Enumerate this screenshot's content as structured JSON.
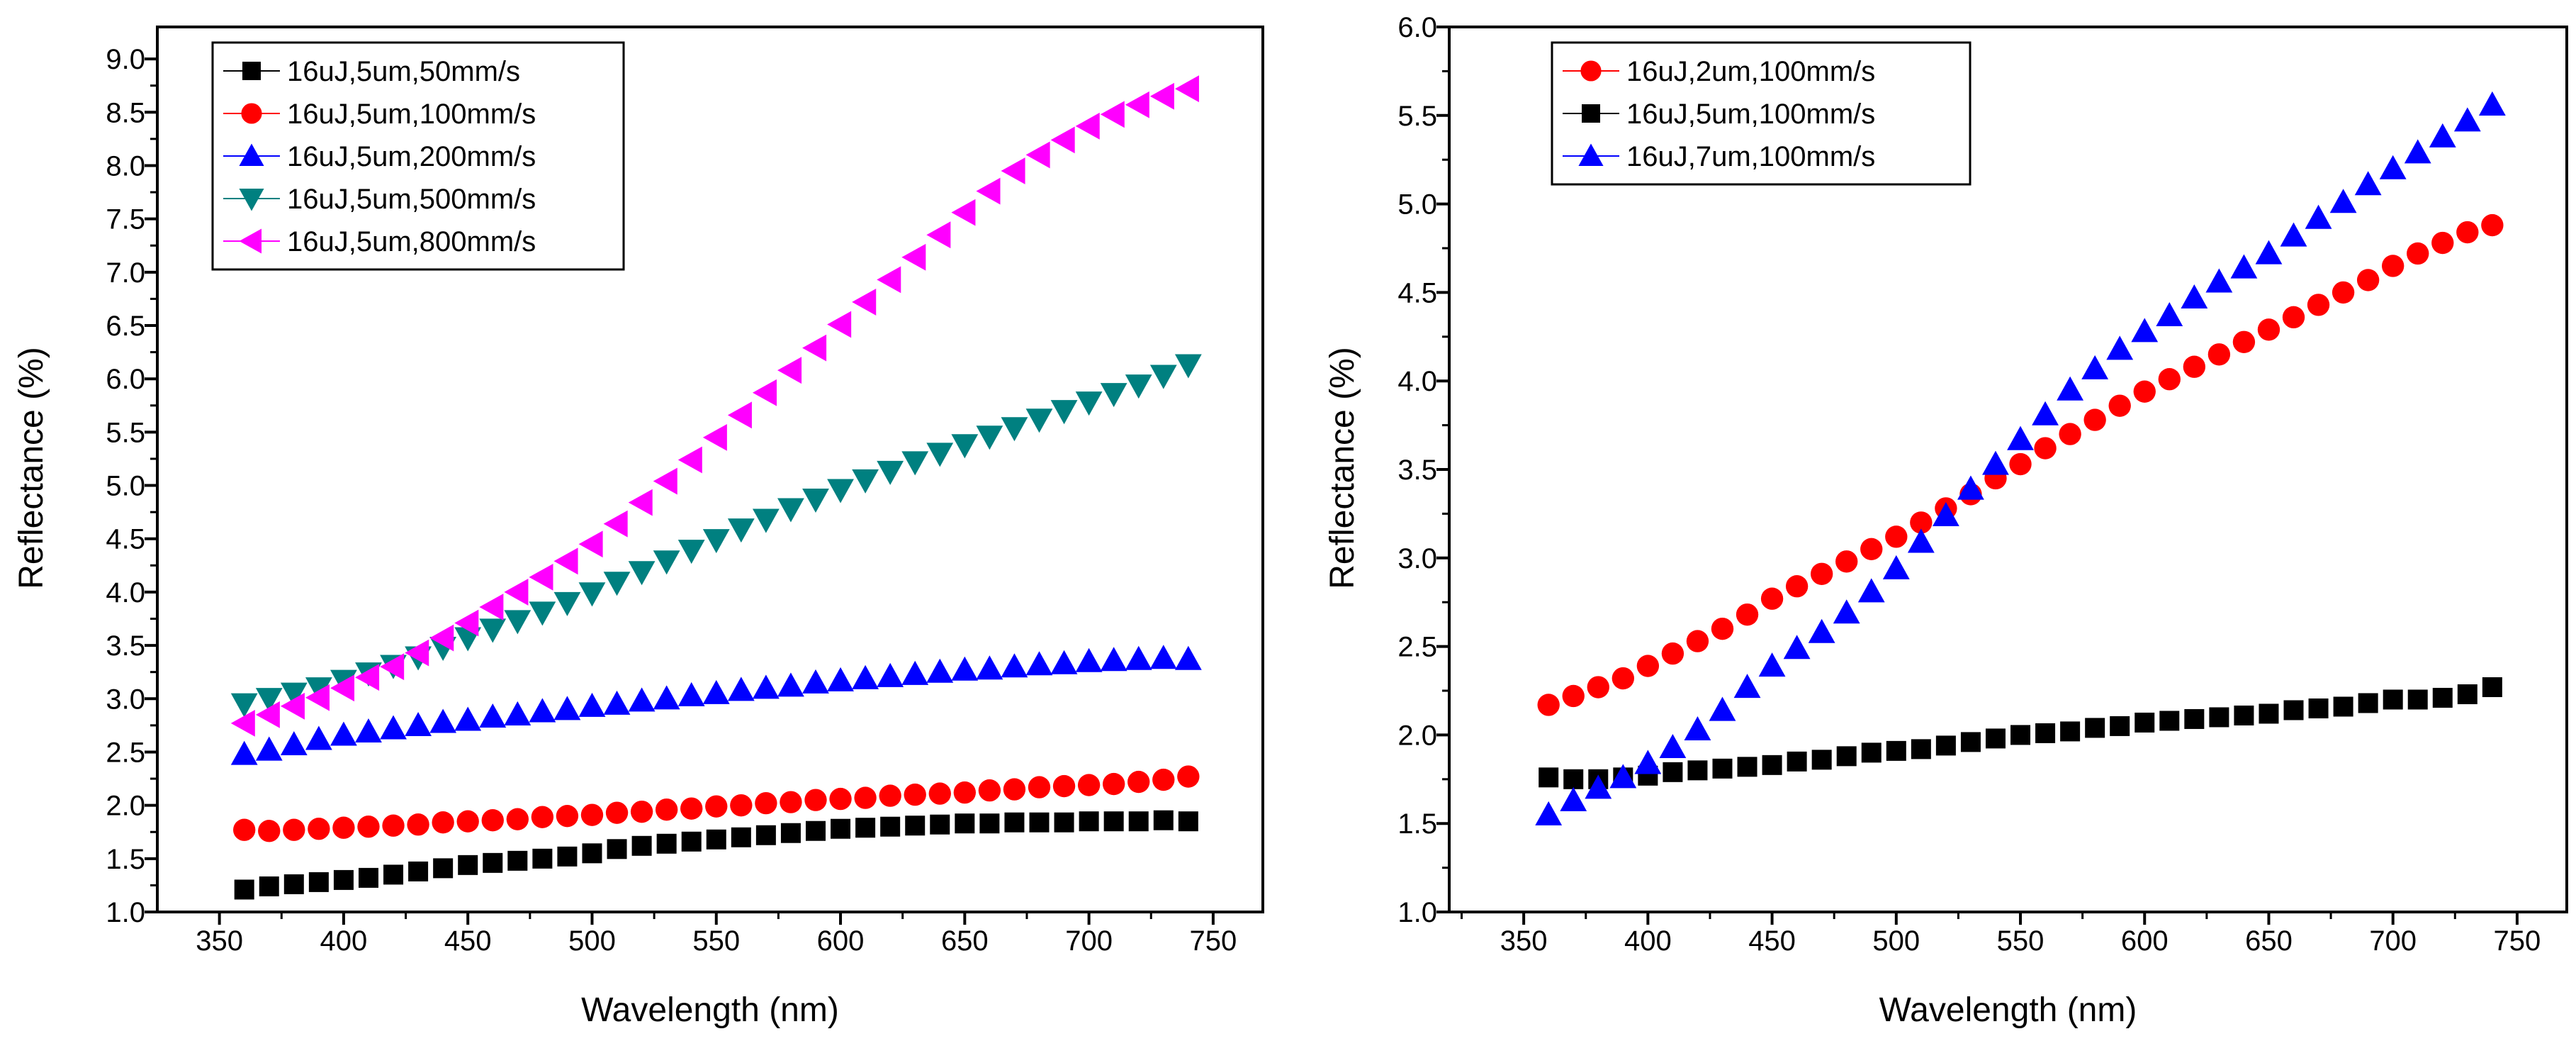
{
  "chart_data": [
    {
      "type": "scatter",
      "xlabel": "Wavelength (nm)",
      "ylabel": "Reflectance (%)",
      "xlim": [
        325,
        770
      ],
      "ylim": [
        1.0,
        9.3
      ],
      "xticks": [
        "350",
        "400",
        "450",
        "500",
        "550",
        "600",
        "650",
        "700",
        "750"
      ],
      "yticks": [
        "1.0",
        "1.5",
        "2.0",
        "2.5",
        "3.0",
        "3.5",
        "4.0",
        "4.5",
        "5.0",
        "5.5",
        "6.0",
        "6.5",
        "7.0",
        "7.5",
        "8.0",
        "8.5",
        "9.0"
      ],
      "legend_position": "top-left",
      "grid": false,
      "x": [
        360,
        370,
        380,
        390,
        400,
        410,
        420,
        430,
        440,
        450,
        460,
        470,
        480,
        490,
        500,
        510,
        520,
        530,
        540,
        550,
        560,
        570,
        580,
        590,
        600,
        610,
        620,
        630,
        640,
        650,
        660,
        670,
        680,
        690,
        700,
        710,
        720,
        730,
        740
      ],
      "series": [
        {
          "name": "16uJ,5um,50mm/s",
          "marker": "square",
          "color": "#000000",
          "values": [
            1.21,
            1.24,
            1.26,
            1.28,
            1.3,
            1.32,
            1.35,
            1.38,
            1.41,
            1.44,
            1.46,
            1.48,
            1.5,
            1.52,
            1.55,
            1.59,
            1.62,
            1.64,
            1.66,
            1.68,
            1.7,
            1.72,
            1.74,
            1.76,
            1.78,
            1.79,
            1.8,
            1.81,
            1.82,
            1.83,
            1.83,
            1.84,
            1.84,
            1.84,
            1.85,
            1.85,
            1.85,
            1.86,
            1.85
          ]
        },
        {
          "name": "16uJ,5um,100mm/s",
          "marker": "circle",
          "color": "#ff0000",
          "values": [
            1.77,
            1.76,
            1.77,
            1.78,
            1.79,
            1.8,
            1.81,
            1.82,
            1.84,
            1.85,
            1.86,
            1.87,
            1.89,
            1.9,
            1.91,
            1.93,
            1.94,
            1.96,
            1.97,
            1.99,
            2.0,
            2.02,
            2.03,
            2.05,
            2.06,
            2.07,
            2.09,
            2.1,
            2.11,
            2.12,
            2.14,
            2.15,
            2.17,
            2.18,
            2.19,
            2.2,
            2.22,
            2.24,
            2.27
          ]
        },
        {
          "name": "16uJ,5um,200mm/s",
          "marker": "triangle-up",
          "color": "#0000ff",
          "values": [
            2.48,
            2.52,
            2.57,
            2.62,
            2.66,
            2.69,
            2.72,
            2.75,
            2.78,
            2.8,
            2.83,
            2.85,
            2.88,
            2.9,
            2.93,
            2.95,
            2.98,
            3.0,
            3.03,
            3.05,
            3.08,
            3.1,
            3.12,
            3.15,
            3.17,
            3.19,
            3.21,
            3.23,
            3.25,
            3.27,
            3.28,
            3.3,
            3.32,
            3.33,
            3.35,
            3.36,
            3.37,
            3.38,
            3.37
          ]
        },
        {
          "name": "16uJ,5um,500mm/s",
          "marker": "triangle-down",
          "color": "#008080",
          "values": [
            2.95,
            3.0,
            3.05,
            3.1,
            3.17,
            3.24,
            3.31,
            3.39,
            3.48,
            3.57,
            3.65,
            3.73,
            3.81,
            3.9,
            3.99,
            4.09,
            4.19,
            4.29,
            4.39,
            4.49,
            4.59,
            4.68,
            4.78,
            4.87,
            4.96,
            5.05,
            5.13,
            5.22,
            5.3,
            5.38,
            5.46,
            5.54,
            5.62,
            5.7,
            5.78,
            5.86,
            5.94,
            6.03,
            6.13
          ]
        },
        {
          "name": "16uJ,5um,800mm/s",
          "marker": "triangle-left",
          "color": "#ff00ff",
          "values": [
            2.77,
            2.85,
            2.93,
            3.01,
            3.1,
            3.2,
            3.3,
            3.43,
            3.57,
            3.71,
            3.86,
            4.0,
            4.14,
            4.29,
            4.45,
            4.64,
            4.84,
            5.04,
            5.24,
            5.45,
            5.66,
            5.87,
            6.08,
            6.29,
            6.51,
            6.72,
            6.93,
            7.14,
            7.35,
            7.56,
            7.76,
            7.95,
            8.1,
            8.24,
            8.37,
            8.48,
            8.57,
            8.65,
            8.72
          ]
        }
      ]
    },
    {
      "type": "scatter",
      "xlabel": "Wavelength (nm)",
      "ylabel": "Reflectance (%)",
      "xlim": [
        320,
        770
      ],
      "ylim": [
        1.0,
        6.0
      ],
      "xticks": [
        "350",
        "400",
        "450",
        "500",
        "550",
        "600",
        "650",
        "700",
        "750"
      ],
      "yticks": [
        "1.0",
        "1.5",
        "2.0",
        "2.5",
        "3.0",
        "3.5",
        "4.0",
        "4.5",
        "5.0",
        "5.5",
        "6.0"
      ],
      "legend_position": "top-left",
      "grid": false,
      "x": [
        360,
        370,
        380,
        390,
        400,
        410,
        420,
        430,
        440,
        450,
        460,
        470,
        480,
        490,
        500,
        510,
        520,
        530,
        540,
        550,
        560,
        570,
        580,
        590,
        600,
        610,
        620,
        630,
        640,
        650,
        660,
        670,
        680,
        690,
        700,
        710,
        720,
        730,
        740
      ],
      "series": [
        {
          "name": "16uJ,2um,100mm/s",
          "marker": "circle",
          "color": "#ff0000",
          "values": [
            2.17,
            2.22,
            2.27,
            2.32,
            2.39,
            2.46,
            2.53,
            2.6,
            2.68,
            2.77,
            2.84,
            2.91,
            2.98,
            3.05,
            3.12,
            3.2,
            3.28,
            3.36,
            3.45,
            3.53,
            3.62,
            3.7,
            3.78,
            3.86,
            3.94,
            4.01,
            4.08,
            4.15,
            4.22,
            4.29,
            4.36,
            4.43,
            4.5,
            4.57,
            4.65,
            4.72,
            4.78,
            4.84,
            4.88
          ]
        },
        {
          "name": "16uJ,5um,100mm/s",
          "marker": "square",
          "color": "#000000",
          "values": [
            1.76,
            1.75,
            1.75,
            1.76,
            1.77,
            1.79,
            1.8,
            1.81,
            1.82,
            1.83,
            1.85,
            1.86,
            1.88,
            1.9,
            1.91,
            1.92,
            1.94,
            1.96,
            1.98,
            2.0,
            2.01,
            2.02,
            2.04,
            2.05,
            2.07,
            2.08,
            2.09,
            2.1,
            2.11,
            2.12,
            2.14,
            2.15,
            2.16,
            2.18,
            2.2,
            2.2,
            2.21,
            2.23,
            2.27
          ]
        },
        {
          "name": "16uJ,7um,100mm/s",
          "marker": "triangle-up",
          "color": "#0000ff",
          "values": [
            1.55,
            1.63,
            1.7,
            1.76,
            1.84,
            1.93,
            2.03,
            2.14,
            2.27,
            2.39,
            2.49,
            2.58,
            2.69,
            2.81,
            2.94,
            3.09,
            3.24,
            3.39,
            3.53,
            3.67,
            3.81,
            3.95,
            4.07,
            4.18,
            4.28,
            4.37,
            4.47,
            4.56,
            4.64,
            4.72,
            4.82,
            4.92,
            5.01,
            5.11,
            5.2,
            5.29,
            5.38,
            5.47,
            5.56
          ]
        }
      ]
    }
  ]
}
